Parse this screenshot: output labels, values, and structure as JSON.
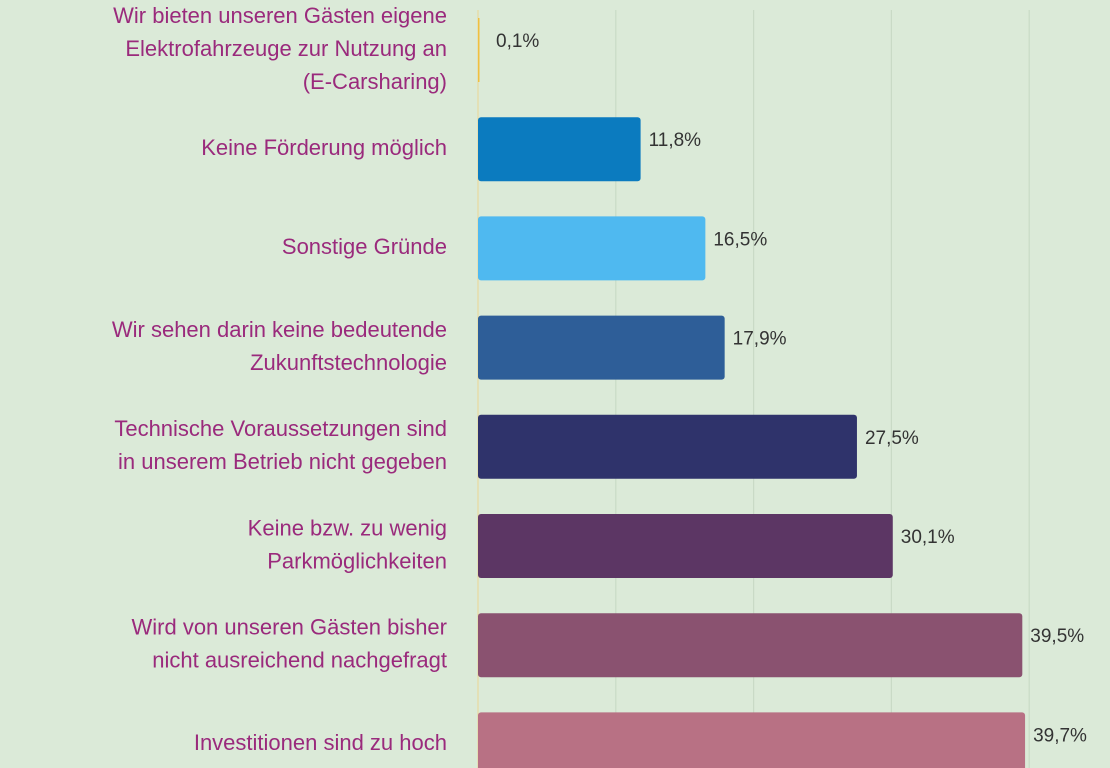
{
  "chart_data": {
    "type": "barh",
    "categories": [
      [
        "Wir bieten unseren Gästen eigene",
        "Elektrofahrzeuge zur Nutzung an",
        "(E-Carsharing)"
      ],
      [
        "Keine Förderung möglich"
      ],
      [
        "Sonstige Gründe"
      ],
      [
        "Wir sehen darin keine bedeutende",
        "Zukunftstechnologie"
      ],
      [
        "Technische Voraussetzungen sind",
        "in unserem Betrieb nicht gegeben"
      ],
      [
        "Keine bzw. zu wenig",
        "Parkmöglichkeiten"
      ],
      [
        "Wird von unseren Gästen bisher",
        "nicht ausreichend nachgefragt"
      ],
      [
        "Investitionen sind zu hoch"
      ]
    ],
    "values": [
      0.1,
      11.8,
      16.5,
      17.9,
      27.5,
      30.1,
      39.5,
      39.7
    ],
    "value_labels": [
      "0,1%",
      "11,8%",
      "16,5%",
      "17,9%",
      "27,5%",
      "30,1%",
      "39,5%",
      "39,7%"
    ],
    "colors": [
      "#f0c040",
      "#0b7bbf",
      "#4fb9f0",
      "#2e5e98",
      "#2f336b",
      "#5c3664",
      "#8a5270",
      "#b87184"
    ],
    "xlim": [
      0,
      45
    ],
    "xticks": [
      0,
      10,
      20,
      30,
      40
    ],
    "grid": true
  }
}
